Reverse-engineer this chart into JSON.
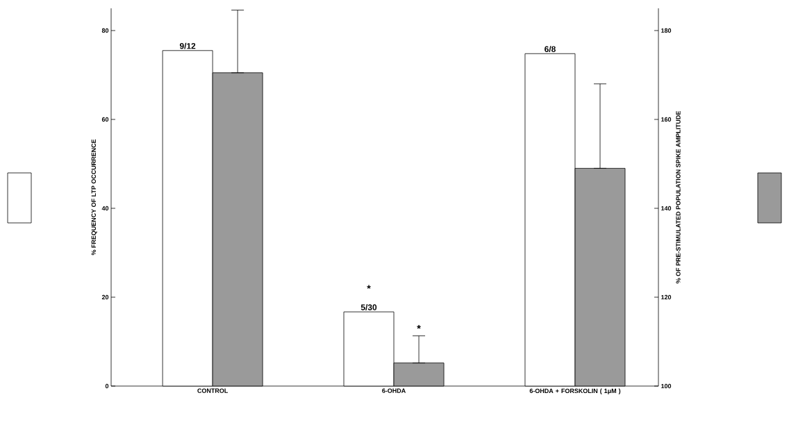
{
  "chart_data": {
    "type": "bar",
    "categories": [
      "CONTROL",
      "6-OHDA",
      "6-OHDA + FORSKOLIN ( 1μM )"
    ],
    "ylabel": "% FREQUENCY OF LTP OCCURRENCE",
    "y2label": "% OF PRE-STIMULATED POPULATION SPIKE AMPLITUDE",
    "series": [
      {
        "color": "#ffffff",
        "values": [
          75.5,
          16.7,
          74.8
        ]
      },
      {
        "color": "#9a9a9a",
        "axis": "y2",
        "values": [
          170.5,
          105.2,
          149
        ],
        "errors": [
          [
            170.5,
            184.6
          ],
          [
            105.2,
            111.3
          ],
          [
            149,
            168
          ]
        ]
      }
    ],
    "annotations": [
      {
        "text": "9/12",
        "x": "CONTROL",
        "y": 75.5
      },
      {
        "text": "5/30",
        "x": "6-OHDA",
        "y": 16.7
      },
      "*",
      "*",
      {
        "text": "6/8",
        "x": "6-OHDA + FORSKOLIN ( 1μM )",
        "y": 74.8
      }
    ],
    "ylim": [
      0,
      85
    ],
    "yticks": [
      0,
      20,
      40,
      60,
      80
    ],
    "y2lim": [
      100,
      185
    ],
    "y2ticks": [
      100,
      120,
      140,
      160,
      180
    ],
    "grid": false
  }
}
